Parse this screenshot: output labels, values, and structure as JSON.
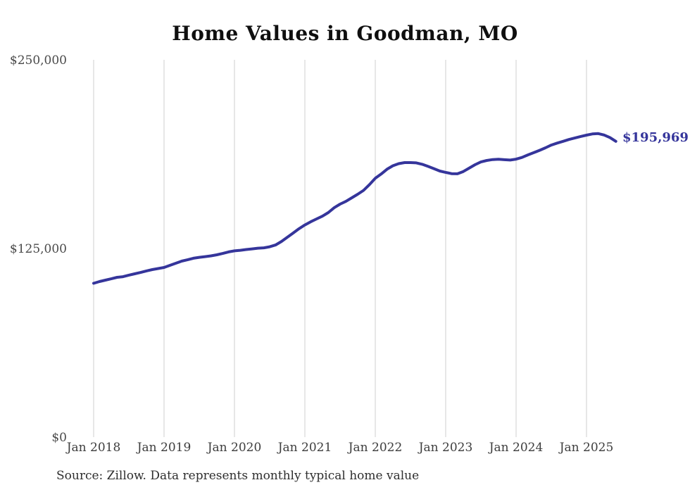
{
  "chart_data": {
    "type": "line",
    "title": "Home Values in Goodman, MO",
    "source": "Source: Zillow. Data represents monthly typical home value",
    "end_label": "$195,969",
    "latest_value": 195969,
    "legend": "none",
    "grid": "vertical-only",
    "ylim": [
      0,
      250000
    ],
    "y_ticks": [
      {
        "label": "$250,000",
        "value": 250000
      },
      {
        "label": "$125,000",
        "value": 125000
      },
      {
        "label": "$0",
        "value": 0
      }
    ],
    "x_tick_labels": [
      "Jan 2018",
      "Jan 2019",
      "Jan 2020",
      "Jan 2021",
      "Jan 2022",
      "Jan 2023",
      "Jan 2024",
      "Jan 2025"
    ],
    "series": [
      {
        "name": "Monthly typical home value",
        "start_month": "2018-01",
        "end_month": "2025-06",
        "frequency": "monthly",
        "values": [
          101900,
          103100,
          104000,
          104900,
          105900,
          106300,
          107300,
          108200,
          109100,
          110100,
          111000,
          111700,
          112400,
          113800,
          115200,
          116600,
          117500,
          118500,
          119100,
          119600,
          120100,
          120800,
          121700,
          122700,
          123400,
          123800,
          124300,
          124700,
          125200,
          125400,
          126100,
          127300,
          129600,
          132400,
          135200,
          138100,
          140600,
          142700,
          144600,
          146400,
          148800,
          152000,
          154400,
          156200,
          158600,
          160900,
          163500,
          167300,
          171500,
          174300,
          177500,
          179800,
          181200,
          181900,
          181900,
          181700,
          180800,
          179400,
          177900,
          176300,
          175400,
          174600,
          174500,
          176000,
          178200,
          180500,
          182300,
          183300,
          183900,
          184100,
          183800,
          183600,
          184200,
          185300,
          187000,
          188500,
          190000,
          191700,
          193500,
          194800,
          196000,
          197200,
          198200,
          199200,
          200100,
          200900,
          201100,
          200200,
          198500,
          195969
        ]
      }
    ],
    "colors": {
      "line": "#35359B",
      "accent_label": "#35359B",
      "gridline": "#CFCFCF",
      "y_axis_text": "#4A4A4A",
      "x_axis_text": "#3D3D3D",
      "title_text": "#0F0F0F",
      "source_text": "#2E2E2E"
    }
  }
}
